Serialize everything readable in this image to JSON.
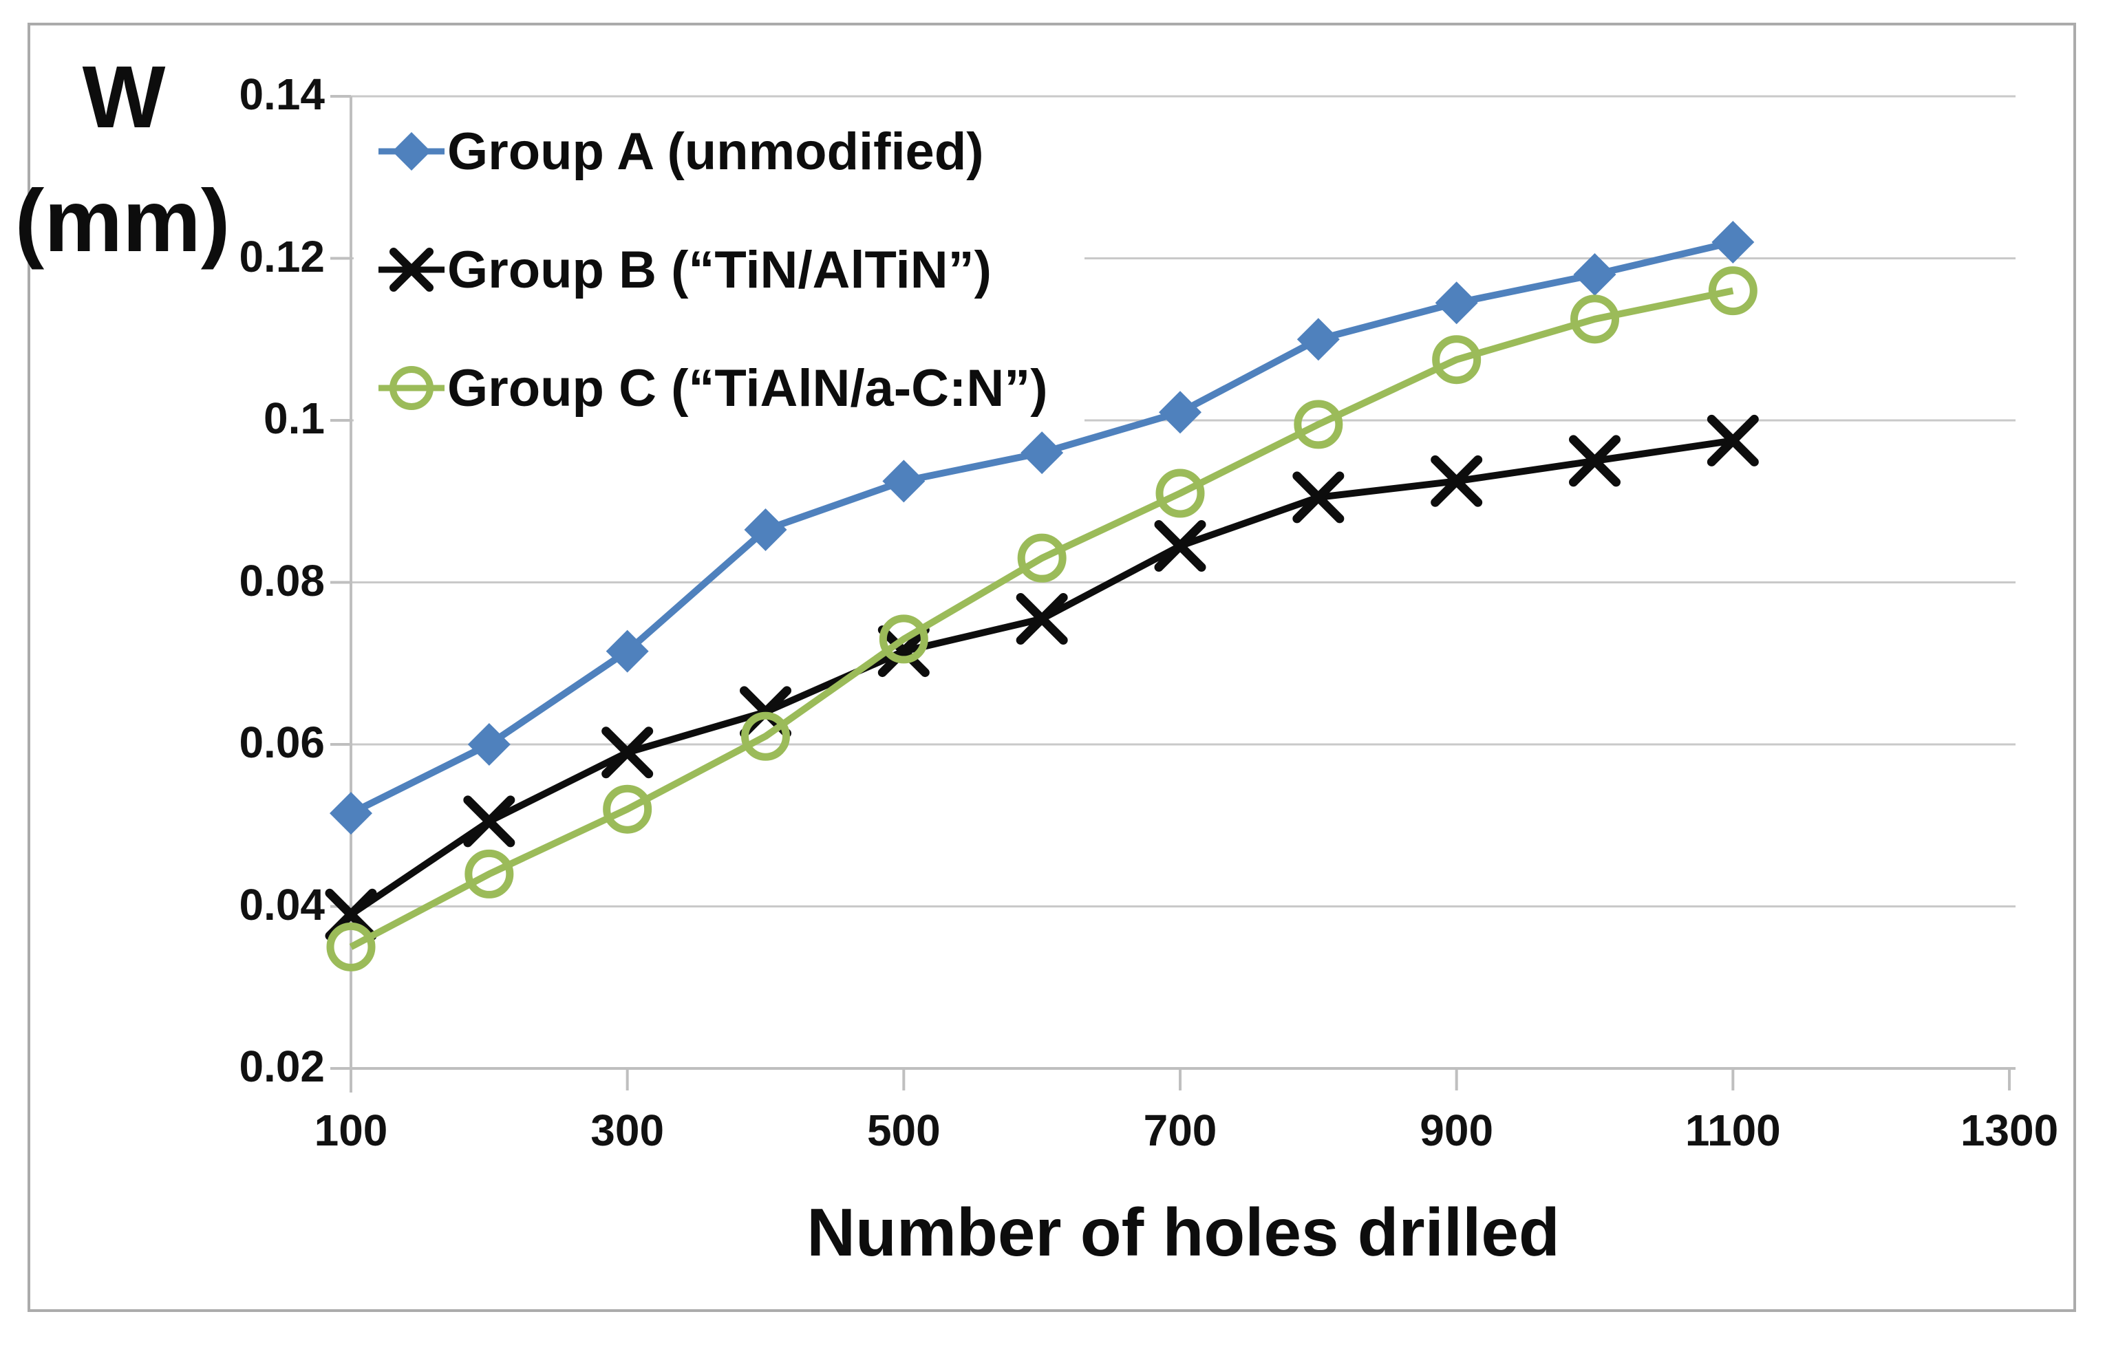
{
  "figure": {
    "background_color": "#ffffff",
    "border_color": "#ababab",
    "gridline_color": "#c9c9c9",
    "axis_line_color": "#bfbfbf",
    "text_color": "#0d0d0d"
  },
  "chart_data": {
    "type": "line",
    "title": "",
    "xlabel": "Number of holes drilled",
    "ylabel_line1": "W",
    "ylabel_line2": "(mm)",
    "grid": true,
    "legend_position": "top-left-inside",
    "x_axis": {
      "min": 100,
      "max": 1300,
      "tick_labels": [
        "100",
        "300",
        "500",
        "700",
        "900",
        "1100",
        "1300"
      ],
      "tick_values": [
        100,
        300,
        500,
        700,
        900,
        1100,
        1300
      ]
    },
    "y_axis": {
      "min": 0.02,
      "max": 0.14,
      "tick_labels": [
        "0.14",
        "0.12",
        "0.1",
        "0.08",
        "0.06",
        "0.04",
        "0.02"
      ],
      "tick_values": [
        0.14,
        0.12,
        0.1,
        0.08,
        0.06,
        0.04,
        0.02
      ]
    },
    "x": [
      100,
      200,
      300,
      400,
      500,
      600,
      700,
      800,
      900,
      1000,
      1100
    ],
    "series": [
      {
        "name": "Group A (unmodified)",
        "marker": "diamond",
        "color": "#4F81BD",
        "values": [
          0.0515,
          0.06,
          0.0715,
          0.0865,
          0.0925,
          0.096,
          0.101,
          0.11,
          0.1145,
          0.118,
          0.122
        ]
      },
      {
        "name": "Group B (“TiN/AlTiN”)",
        "marker": "x",
        "color": "#0d0d0d",
        "values": [
          0.039,
          0.0505,
          0.059,
          0.064,
          0.0715,
          0.0755,
          0.0845,
          0.0905,
          0.0925,
          0.095,
          0.0975
        ]
      },
      {
        "name": "Group C (“TiAlN/a-C:N”)",
        "marker": "open-circle",
        "color": "#9BBB59",
        "values": [
          0.035,
          0.044,
          0.052,
          0.061,
          0.073,
          0.083,
          0.091,
          0.0995,
          0.1075,
          0.1125,
          0.116
        ]
      }
    ]
  }
}
